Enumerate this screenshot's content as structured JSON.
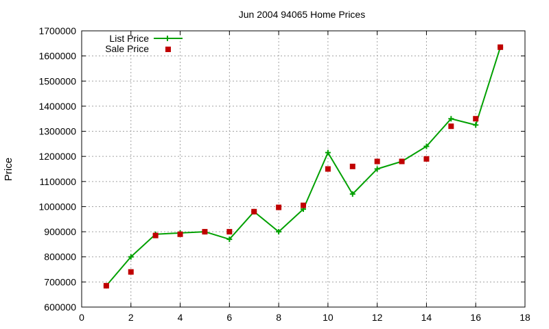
{
  "chart_data": {
    "type": "line",
    "title": "Jun 2004 94065 Home Prices",
    "xlabel": "",
    "ylabel": "Price",
    "xlim": [
      0,
      18
    ],
    "ylim": [
      600000,
      1700000
    ],
    "x_ticks": [
      "0",
      "2",
      "4",
      "6",
      "8",
      "10",
      "12",
      "14",
      "16",
      "18"
    ],
    "y_ticks": [
      "600000",
      "700000",
      "800000",
      "900000",
      "1000000",
      "1100000",
      "1200000",
      "1300000",
      "1400000",
      "1500000",
      "1600000",
      "1700000"
    ],
    "grid": true,
    "legend_position": "top-left",
    "x": [
      1,
      2,
      3,
      4,
      5,
      6,
      7,
      8,
      9,
      10,
      11,
      12,
      13,
      14,
      15,
      16,
      17
    ],
    "series": [
      {
        "name": "List Price",
        "style": "line-with-plus-markers",
        "color": "#00a000",
        "values": [
          685000,
          800000,
          890000,
          895000,
          900000,
          870000,
          980000,
          900000,
          990000,
          1215000,
          1050000,
          1150000,
          1180000,
          1240000,
          1350000,
          1325000,
          1635000
        ]
      },
      {
        "name": "Sale Price",
        "style": "square-markers",
        "color": "#c00000",
        "values": [
          685000,
          740000,
          885000,
          890000,
          900000,
          900000,
          980000,
          997000,
          1005000,
          1150000,
          1160000,
          1180000,
          1180000,
          1190000,
          1320000,
          1350000,
          1635000
        ]
      }
    ]
  }
}
